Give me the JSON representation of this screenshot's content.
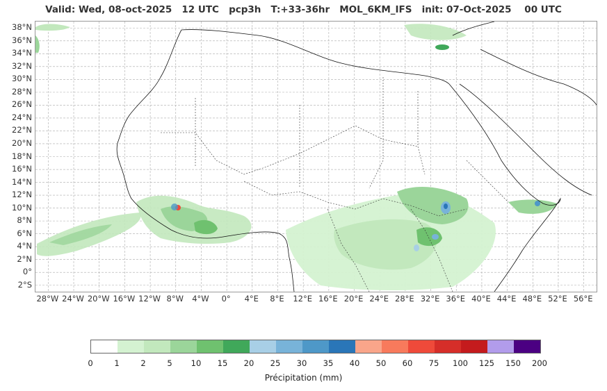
{
  "title": "Valid: Wed, 08-oct-2025   12 UTC   pcp3h   T:+33-36hr   MOL_6KM_IFS   init: 07-Oct-2025    00 UTC",
  "lat_labels": [
    "38°N",
    "36°N",
    "34°N",
    "32°N",
    "30°N",
    "28°N",
    "26°N",
    "24°N",
    "22°N",
    "20°N",
    "18°N",
    "16°N",
    "14°N",
    "12°N",
    "10°N",
    "8°N",
    "6°N",
    "4°N",
    "2°N",
    "0°",
    "2°S"
  ],
  "lon_labels": [
    "28°W",
    "24°W",
    "20°W",
    "16°W",
    "12°W",
    "8°W",
    "4°W",
    "0°",
    "4°E",
    "8°E",
    "12°E",
    "16°E",
    "20°E",
    "24°E",
    "28°E",
    "32°E",
    "36°E",
    "40°E",
    "44°E",
    "48°E",
    "52°E",
    "56°E"
  ],
  "colorbar": {
    "label": "Précipitation (mm)",
    "ticks": [
      "0",
      "1",
      "2",
      "5",
      "10",
      "15",
      "20",
      "25",
      "30",
      "35",
      "40",
      "50",
      "60",
      "75",
      "100",
      "125",
      "150",
      "200"
    ],
    "colors": [
      "#ffffff",
      "#d4f2d1",
      "#c2e8bd",
      "#9bd59a",
      "#6fc16f",
      "#40a85a",
      "#a8cfe6",
      "#78b3d9",
      "#4e98c8",
      "#2a76b8",
      "#f9a58a",
      "#f87a5c",
      "#ef4a3a",
      "#d62e29",
      "#c41b1d",
      "#b29ceb",
      "#4b0082"
    ]
  }
}
